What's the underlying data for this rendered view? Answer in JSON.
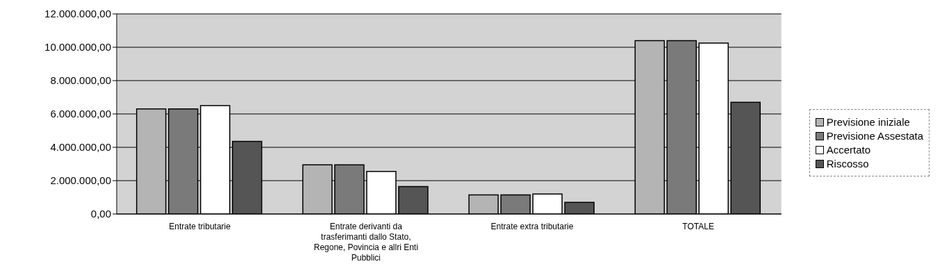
{
  "chart_data": {
    "type": "bar",
    "categories": [
      "Entrate tributarie",
      "Entrate derivanti da trasferimanti dallo Stato, Regone, Povincia e allri Enti Pubblici",
      "Entrate extra tributarie",
      "TOTALE"
    ],
    "series": [
      {
        "name": "Previsione iniziale",
        "color": "#b4b4b4",
        "values": [
          6300000,
          2950000,
          1150000,
          10400000
        ]
      },
      {
        "name": "Previsione Assestata",
        "color": "#7a7a7a",
        "values": [
          6300000,
          2950000,
          1150000,
          10400000
        ]
      },
      {
        "name": "Accertato",
        "color": "#ffffff",
        "values": [
          6500000,
          2550000,
          1200000,
          10250000
        ]
      },
      {
        "name": "Riscosso",
        "color": "#555555",
        "values": [
          4350000,
          1650000,
          700000,
          6700000
        ]
      }
    ],
    "ylim": [
      0,
      12000000
    ],
    "yticks": [
      {
        "value": 0,
        "label": "0,00"
      },
      {
        "value": 2000000,
        "label": "2.000.000,00"
      },
      {
        "value": 4000000,
        "label": "4.000.000,00"
      },
      {
        "value": 6000000,
        "label": "6.000.000,00"
      },
      {
        "value": 8000000,
        "label": "8.000.000,00"
      },
      {
        "value": 10000000,
        "label": "10.000.000,00"
      },
      {
        "value": 12000000,
        "label": "12.000.000,00"
      }
    ],
    "grid": "y",
    "legend": "right"
  }
}
